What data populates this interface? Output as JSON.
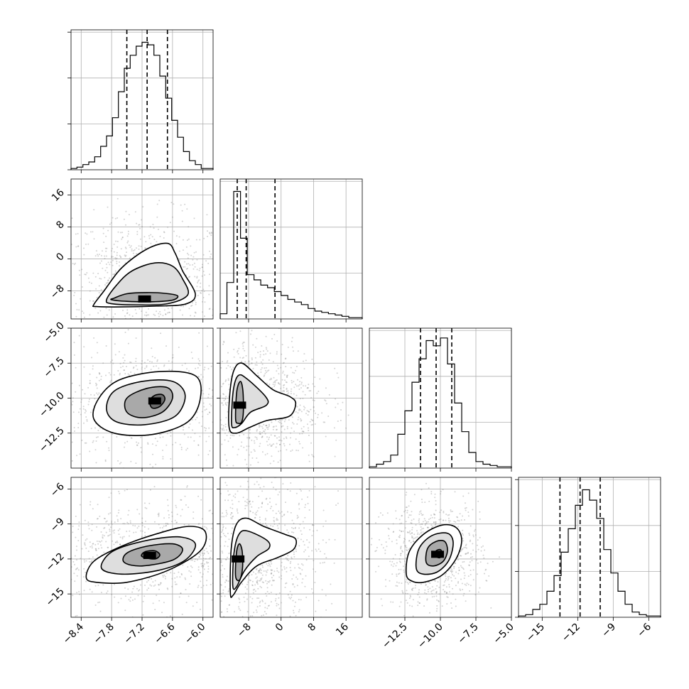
{
  "chart_data": {
    "type": "corner",
    "parameters": [
      {
        "index": 0,
        "range": [
          -8.6,
          -5.8
        ],
        "ticks": [
          -8.4,
          -7.8,
          -7.2,
          -6.6,
          -6.0
        ],
        "tick_labels": [
          "−8.4",
          "−7.8",
          "−7.2",
          "−6.6",
          "−6.0"
        ],
        "quantiles": [
          -7.5,
          -7.1,
          -6.7
        ],
        "histogram": [
          0.01,
          0.02,
          0.04,
          0.06,
          0.1,
          0.18,
          0.26,
          0.4,
          0.6,
          0.78,
          0.88,
          0.95,
          0.98,
          0.96,
          0.88,
          0.72,
          0.55,
          0.38,
          0.25,
          0.14,
          0.07,
          0.04,
          0.01,
          0.01
        ]
      },
      {
        "index": 1,
        "range": [
          -15,
          20
        ],
        "ticks": [
          -8,
          0,
          8,
          16
        ],
        "tick_labels": [
          "−8",
          "0",
          "8",
          "16"
        ],
        "quantiles": [
          -10.8,
          -8.6,
          -1.5
        ],
        "histogram": [
          0.04,
          0.28,
          0.98,
          0.62,
          0.34,
          0.3,
          0.26,
          0.24,
          0.21,
          0.18,
          0.15,
          0.13,
          0.11,
          0.08,
          0.06,
          0.05,
          0.04,
          0.03,
          0.02,
          0.01,
          0.01
        ]
      },
      {
        "index": 2,
        "range": [
          -15,
          -5
        ],
        "ticks": [
          -12.5,
          -10.0,
          -7.5,
          -5.0
        ],
        "tick_labels": [
          "−12.5",
          "−10.0",
          "−7.5",
          "−5.0"
        ],
        "quantiles": [
          -11.4,
          -10.3,
          -9.2
        ],
        "histogram": [
          0.01,
          0.03,
          0.05,
          0.1,
          0.26,
          0.44,
          0.66,
          0.84,
          0.98,
          0.94,
          1.0,
          0.8,
          0.5,
          0.28,
          0.12,
          0.05,
          0.03,
          0.02,
          0.01,
          0.01
        ]
      },
      {
        "index": 3,
        "range": [
          -17,
          -5
        ],
        "ticks": [
          -15,
          -12,
          -9,
          -6
        ],
        "tick_labels": [
          "−15",
          "−12",
          "−9",
          "−6"
        ],
        "quantiles": [
          -13.5,
          -11.8,
          -10.1
        ],
        "histogram": [
          0.01,
          0.02,
          0.06,
          0.1,
          0.2,
          0.32,
          0.5,
          0.68,
          0.86,
          0.98,
          0.9,
          0.76,
          0.52,
          0.34,
          0.2,
          0.1,
          0.04,
          0.02,
          0.01,
          0.01
        ]
      }
    ],
    "pairs": [
      {
        "x": 0,
        "y": 1,
        "peak": {
          "x": -7.15,
          "y": -10.0
        },
        "contours": [
          [
            [
              -7.75,
              -9.8
            ],
            [
              -7.5,
              -8.7
            ],
            [
              -7.1,
              -8.4
            ],
            [
              -6.75,
              -8.6
            ],
            [
              -6.5,
              -9.2
            ],
            [
              -6.6,
              -10.3
            ],
            [
              -7.0,
              -10.7
            ],
            [
              -7.5,
              -10.6
            ],
            [
              -7.8,
              -10.2
            ]
          ],
          [
            [
              -7.9,
              -10.2
            ],
            [
              -7.7,
              -6.5
            ],
            [
              -7.4,
              -3.0
            ],
            [
              -6.95,
              -1.0
            ],
            [
              -6.6,
              -1.8
            ],
            [
              -6.4,
              -5.0
            ],
            [
              -6.3,
              -9.0
            ],
            [
              -6.7,
              -11.2
            ],
            [
              -7.3,
              -11.5
            ],
            [
              -7.8,
              -11.2
            ]
          ],
          [
            [
              -8.15,
              -11.4
            ],
            [
              -7.95,
              -8.0
            ],
            [
              -7.6,
              -2.2
            ],
            [
              -7.1,
              2.5
            ],
            [
              -6.7,
              3.9
            ],
            [
              -6.55,
              1.5
            ],
            [
              -6.4,
              -3.0
            ],
            [
              -6.15,
              -8.8
            ],
            [
              -6.35,
              -11.3
            ],
            [
              -6.95,
              -11.8
            ],
            [
              -7.6,
              -12.0
            ],
            [
              -8.1,
              -11.9
            ]
          ]
        ]
      },
      {
        "x": 0,
        "y": 2,
        "peak": {
          "x": -6.95,
          "y": -10.2
        },
        "contours": [
          [
            [
              -7.0,
              -10.7
            ],
            [
              -7.05,
              -10.2
            ],
            [
              -6.95,
              -9.8
            ],
            [
              -6.8,
              -9.75
            ],
            [
              -6.75,
              -10.1
            ],
            [
              -6.85,
              -10.6
            ]
          ],
          [
            [
              -7.5,
              -11.0
            ],
            [
              -7.5,
              -10.0
            ],
            [
              -7.1,
              -9.3
            ],
            [
              -6.7,
              -9.25
            ],
            [
              -6.6,
              -10.0
            ],
            [
              -6.8,
              -11.0
            ],
            [
              -7.2,
              -11.4
            ]
          ],
          [
            [
              -7.9,
              -10.8
            ],
            [
              -7.75,
              -9.5
            ],
            [
              -7.2,
              -8.8
            ],
            [
              -6.6,
              -8.8
            ],
            [
              -6.35,
              -9.8
            ],
            [
              -6.55,
              -11.3
            ],
            [
              -7.15,
              -11.9
            ],
            [
              -7.7,
              -11.7
            ]
          ],
          [
            [
              -8.15,
              -11.5
            ],
            [
              -8.05,
              -10.0
            ],
            [
              -7.65,
              -8.7
            ],
            [
              -6.85,
              -8.1
            ],
            [
              -6.15,
              -8.4
            ],
            [
              -6.05,
              -10.0
            ],
            [
              -6.3,
              -11.7
            ],
            [
              -7.0,
              -12.6
            ],
            [
              -7.75,
              -12.5
            ]
          ]
        ]
      },
      {
        "x": 1,
        "y": 2,
        "peak": {
          "x": -10.2,
          "y": -10.5
        },
        "contours": [
          [
            [
              -11.2,
              -11.5
            ],
            [
              -10.9,
              -9.5
            ],
            [
              -10.0,
              -8.8
            ],
            [
              -9.4,
              -9.5
            ],
            [
              -9.3,
              -11.0
            ],
            [
              -9.7,
              -11.7
            ],
            [
              -10.5,
              -11.8
            ]
          ],
          [
            [
              -12.2,
              -11.8
            ],
            [
              -11.8,
              -9.5
            ],
            [
              -10.6,
              -8.4
            ],
            [
              -8.5,
              -8.6
            ],
            [
              -3.8,
              -9.9
            ],
            [
              -3.6,
              -10.5
            ],
            [
              -7.5,
              -11.0
            ],
            [
              -9.7,
              -11.8
            ],
            [
              -11.4,
              -12.1
            ]
          ],
          [
            [
              -12.8,
              -12.1
            ],
            [
              -12.6,
              -9.6
            ],
            [
              -11.6,
              -8.0
            ],
            [
              -9.6,
              -7.5
            ],
            [
              -6.0,
              -8.4
            ],
            [
              -2.0,
              -9.4
            ],
            [
              2.2,
              -9.9
            ],
            [
              3.6,
              -10.4
            ],
            [
              2.0,
              -11.3
            ],
            [
              -3.5,
              -11.6
            ],
            [
              -7.8,
              -12.1
            ],
            [
              -11.0,
              -12.5
            ]
          ]
        ]
      },
      {
        "x": 0,
        "y": 3,
        "peak": {
          "x": -7.05,
          "y": -11.7
        },
        "contours": [
          [
            [
              -7.2,
              -11.8
            ],
            [
              -7.15,
              -11.4
            ],
            [
              -6.95,
              -11.3
            ],
            [
              -6.85,
              -11.65
            ],
            [
              -6.95,
              -12.0
            ]
          ],
          [
            [
              -7.55,
              -12.3
            ],
            [
              -7.5,
              -11.5
            ],
            [
              -7.1,
              -10.9
            ],
            [
              -6.6,
              -10.7
            ],
            [
              -6.4,
              -11.2
            ],
            [
              -6.6,
              -12.1
            ],
            [
              -7.2,
              -12.6
            ]
          ],
          [
            [
              -8.0,
              -12.8
            ],
            [
              -7.8,
              -11.4
            ],
            [
              -7.2,
              -10.5
            ],
            [
              -6.5,
              -10.1
            ],
            [
              -6.15,
              -10.7
            ],
            [
              -6.35,
              -12.1
            ],
            [
              -6.9,
              -13.0
            ],
            [
              -7.6,
              -13.3
            ]
          ],
          [
            [
              -8.3,
              -13.6
            ],
            [
              -8.15,
              -12.2
            ],
            [
              -7.6,
              -10.9
            ],
            [
              -6.8,
              -9.7
            ],
            [
              -6.25,
              -9.2
            ],
            [
              -5.95,
              -9.7
            ],
            [
              -6.05,
              -11.3
            ],
            [
              -6.7,
              -13.0
            ],
            [
              -7.5,
              -14.0
            ],
            [
              -8.1,
              -14.0
            ]
          ]
        ]
      },
      {
        "x": 1,
        "y": 3,
        "peak": {
          "x": -10.6,
          "y": -12.0
        },
        "contours": [
          [
            [
              -11.2,
              -13.5
            ],
            [
              -11.0,
              -11.5
            ],
            [
              -10.3,
              -10.7
            ],
            [
              -9.6,
              -11.3
            ],
            [
              -9.5,
              -12.8
            ],
            [
              -10.2,
              -13.8
            ]
          ],
          [
            [
              -11.9,
              -14.3
            ],
            [
              -11.6,
              -11.5
            ],
            [
              -10.4,
              -9.9
            ],
            [
              -8.3,
              -9.6
            ],
            [
              -3.5,
              -10.4
            ],
            [
              -3.0,
              -11.1
            ],
            [
              -6.0,
              -11.8
            ],
            [
              -9.0,
              -13.0
            ],
            [
              -11.0,
              -14.4
            ]
          ],
          [
            [
              -12.5,
              -14.9
            ],
            [
              -12.3,
              -11.2
            ],
            [
              -11.1,
              -9.1
            ],
            [
              -8.6,
              -8.5
            ],
            [
              -4.3,
              -9.2
            ],
            [
              1.0,
              -9.9
            ],
            [
              3.6,
              -10.3
            ],
            [
              3.0,
              -11.2
            ],
            [
              -1.0,
              -11.9
            ],
            [
              -6.0,
              -12.6
            ],
            [
              -9.8,
              -14.0
            ],
            [
              -11.8,
              -15.1
            ]
          ]
        ]
      },
      {
        "x": 2,
        "y": 3,
        "peak": {
          "x": -10.2,
          "y": -11.6
        },
        "contours": [
          [
            [
              -10.4,
              -11.7
            ],
            [
              -10.3,
              -11.3
            ],
            [
              -10.0,
              -11.2
            ],
            [
              -9.9,
              -11.5
            ],
            [
              -10.05,
              -11.9
            ]
          ],
          [
            [
              -11.0,
              -12.3
            ],
            [
              -10.9,
              -11.1
            ],
            [
              -10.3,
              -10.5
            ],
            [
              -9.7,
              -10.5
            ],
            [
              -9.5,
              -11.3
            ],
            [
              -9.8,
              -12.2
            ],
            [
              -10.5,
              -12.6
            ]
          ],
          [
            [
              -11.7,
              -12.8
            ],
            [
              -11.5,
              -11.1
            ],
            [
              -10.6,
              -10.0
            ],
            [
              -9.5,
              -9.8
            ],
            [
              -9.1,
              -10.6
            ],
            [
              -9.4,
              -12.1
            ],
            [
              -10.2,
              -13.1
            ],
            [
              -11.2,
              -13.3
            ]
          ],
          [
            [
              -12.4,
              -13.3
            ],
            [
              -12.2,
              -11.4
            ],
            [
              -11.2,
              -9.9
            ],
            [
              -9.9,
              -9.1
            ],
            [
              -8.9,
              -9.3
            ],
            [
              -8.5,
              -10.4
            ],
            [
              -8.9,
              -12.0
            ],
            [
              -9.9,
              -13.4
            ],
            [
              -11.2,
              -14.0
            ],
            [
              -12.0,
              -13.9
            ]
          ]
        ]
      }
    ]
  }
}
